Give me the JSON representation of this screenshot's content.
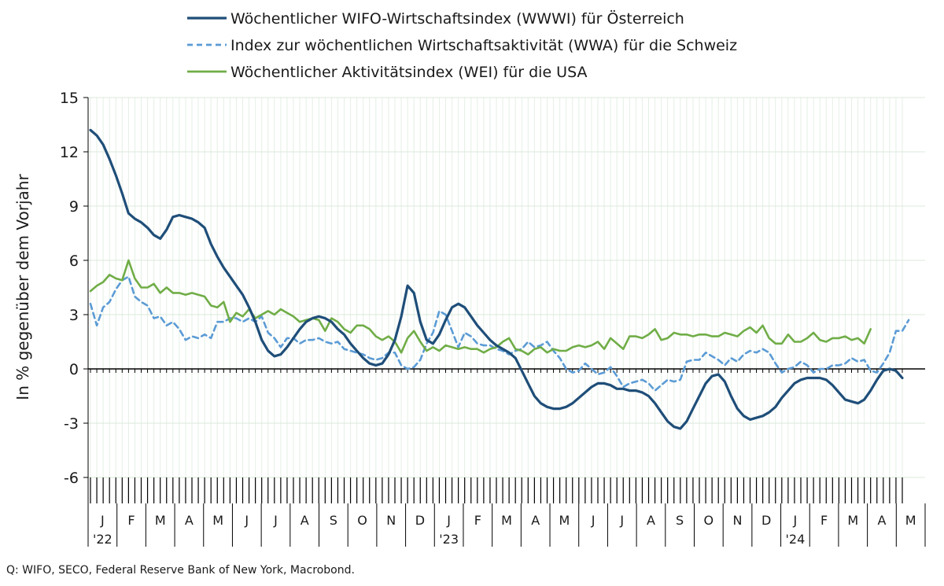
{
  "source_note": "Q: WIFO, SECO, Federal Reserve Bank of New York, Macrobond.",
  "chart_data": {
    "type": "line",
    "ylabel": "In % gegenüber dem Vorjahr",
    "ylim": [
      -6,
      15
    ],
    "yticks": [
      15,
      12,
      9,
      6,
      3,
      0,
      -3,
      -6
    ],
    "grid": true,
    "legend_position": "top",
    "x_period": "weekly, Jan 2022 – May 2024",
    "months": [
      "J",
      "F",
      "M",
      "A",
      "M",
      "J",
      "J",
      "A",
      "S",
      "O",
      "N",
      "D",
      "J",
      "F",
      "M",
      "A",
      "M",
      "J",
      "J",
      "A",
      "S",
      "O",
      "N",
      "D",
      "J",
      "F",
      "M",
      "A",
      "M"
    ],
    "year_labels": [
      {
        "month_index": 0,
        "label": "'22"
      },
      {
        "month_index": 12,
        "label": "'23"
      },
      {
        "month_index": 24,
        "label": "'24"
      }
    ],
    "series": [
      {
        "name": "Wöchentlicher WIFO-Wirtschaftsindex (WWWI) für Österreich",
        "color": "#1f4e79",
        "style": "solid",
        "values": [
          13.2,
          12.9,
          12.4,
          11.6,
          10.7,
          9.7,
          8.6,
          8.3,
          8.1,
          7.8,
          7.4,
          7.2,
          7.7,
          8.4,
          8.5,
          8.4,
          8.3,
          8.1,
          7.8,
          6.9,
          6.2,
          5.6,
          5.1,
          4.6,
          4.1,
          3.4,
          2.6,
          1.6,
          1.0,
          0.7,
          0.8,
          1.2,
          1.7,
          2.2,
          2.6,
          2.8,
          2.9,
          2.8,
          2.6,
          2.2,
          1.9,
          1.4,
          1.0,
          0.6,
          0.3,
          0.2,
          0.3,
          0.8,
          1.6,
          2.9,
          4.6,
          4.2,
          2.6,
          1.6,
          1.4,
          1.9,
          2.7,
          3.4,
          3.6,
          3.4,
          2.9,
          2.4,
          2.0,
          1.6,
          1.3,
          1.1,
          0.9,
          0.6,
          -0.1,
          -0.8,
          -1.5,
          -1.9,
          -2.1,
          -2.2,
          -2.2,
          -2.1,
          -1.9,
          -1.6,
          -1.3,
          -1.0,
          -0.8,
          -0.8,
          -0.9,
          -1.1,
          -1.1,
          -1.2,
          -1.2,
          -1.3,
          -1.5,
          -1.9,
          -2.4,
          -2.9,
          -3.2,
          -3.3,
          -2.9,
          -2.2,
          -1.5,
          -0.8,
          -0.4,
          -0.3,
          -0.7,
          -1.5,
          -2.2,
          -2.6,
          -2.8,
          -2.7,
          -2.6,
          -2.4,
          -2.1,
          -1.6,
          -1.2,
          -0.8,
          -0.6,
          -0.5,
          -0.5,
          -0.5,
          -0.6,
          -0.9,
          -1.3,
          -1.7,
          -1.8,
          -1.9,
          -1.7,
          -1.2,
          -0.6,
          -0.1,
          0.0,
          -0.1,
          -0.5
        ]
      },
      {
        "name": "Index zur wöchentlichen Wirtschaftsaktivität (WWA) für die Schweiz",
        "color": "#5b9bd5",
        "style": "dashed",
        "values": [
          3.6,
          2.4,
          3.4,
          3.7,
          4.4,
          4.9,
          5.1,
          4.0,
          3.7,
          3.5,
          2.8,
          2.9,
          2.4,
          2.6,
          2.2,
          1.6,
          1.8,
          1.7,
          1.9,
          1.7,
          2.6,
          2.6,
          2.8,
          2.8,
          2.6,
          2.8,
          2.6,
          2.9,
          2.0,
          1.7,
          1.2,
          1.7,
          1.7,
          1.4,
          1.6,
          1.6,
          1.7,
          1.5,
          1.4,
          1.5,
          1.1,
          1.0,
          0.9,
          0.8,
          0.6,
          0.5,
          0.6,
          0.9,
          0.9,
          0.2,
          0.0,
          0.1,
          0.5,
          1.4,
          2.0,
          3.2,
          3.0,
          2.1,
          1.2,
          2.0,
          1.8,
          1.4,
          1.3,
          1.3,
          1.1,
          1.0,
          0.8,
          1.0,
          1.1,
          1.5,
          1.2,
          1.3,
          1.5,
          1.0,
          0.6,
          0.0,
          -0.2,
          -0.1,
          0.3,
          0.0,
          -0.3,
          -0.2,
          0.1,
          -0.4,
          -1.0,
          -0.8,
          -0.7,
          -0.6,
          -0.8,
          -1.2,
          -0.9,
          -0.6,
          -0.7,
          -0.6,
          0.4,
          0.5,
          0.5,
          0.9,
          0.7,
          0.5,
          0.2,
          0.6,
          0.4,
          0.8,
          1.0,
          0.9,
          1.1,
          0.9,
          0.3,
          -0.2,
          0.0,
          0.1,
          0.4,
          0.2,
          -0.2,
          0.0,
          0.0,
          0.2,
          0.2,
          0.3,
          0.6,
          0.4,
          0.5,
          -0.1,
          -0.2,
          0.3,
          0.9,
          2.1,
          2.1,
          2.7
        ]
      },
      {
        "name": "Wöchentlicher Aktivitätsindex (WEI) für die USA",
        "color": "#70ad47",
        "style": "solid",
        "values": [
          4.3,
          4.6,
          4.8,
          5.2,
          5.0,
          4.9,
          6.0,
          5.0,
          4.5,
          4.5,
          4.7,
          4.2,
          4.5,
          4.2,
          4.2,
          4.1,
          4.2,
          4.1,
          4.0,
          3.5,
          3.4,
          3.7,
          2.6,
          3.1,
          2.9,
          3.3,
          2.8,
          3.0,
          3.2,
          3.0,
          3.3,
          3.1,
          2.9,
          2.6,
          2.7,
          2.8,
          2.7,
          2.1,
          2.8,
          2.6,
          2.2,
          2.0,
          2.4,
          2.4,
          2.2,
          1.8,
          1.6,
          1.8,
          1.5,
          0.9,
          1.7,
          2.1,
          1.5,
          1.0,
          1.2,
          1.0,
          1.3,
          1.2,
          1.1,
          1.2,
          1.1,
          1.1,
          0.9,
          1.1,
          1.2,
          1.5,
          1.7,
          1.1,
          1.0,
          0.8,
          1.1,
          1.2,
          0.9,
          1.1,
          1.0,
          1.0,
          1.2,
          1.3,
          1.2,
          1.3,
          1.5,
          1.1,
          1.7,
          1.4,
          1.1,
          1.8,
          1.8,
          1.7,
          1.9,
          2.2,
          1.6,
          1.7,
          2.0,
          1.9,
          1.9,
          1.8,
          1.9,
          1.9,
          1.8,
          1.8,
          2.0,
          1.9,
          1.8,
          2.1,
          2.3,
          2.0,
          2.4,
          1.7,
          1.4,
          1.4,
          1.9,
          1.5,
          1.5,
          1.7,
          2.0,
          1.6,
          1.5,
          1.7,
          1.7,
          1.8,
          1.6,
          1.7,
          1.4,
          2.2
        ]
      }
    ]
  }
}
